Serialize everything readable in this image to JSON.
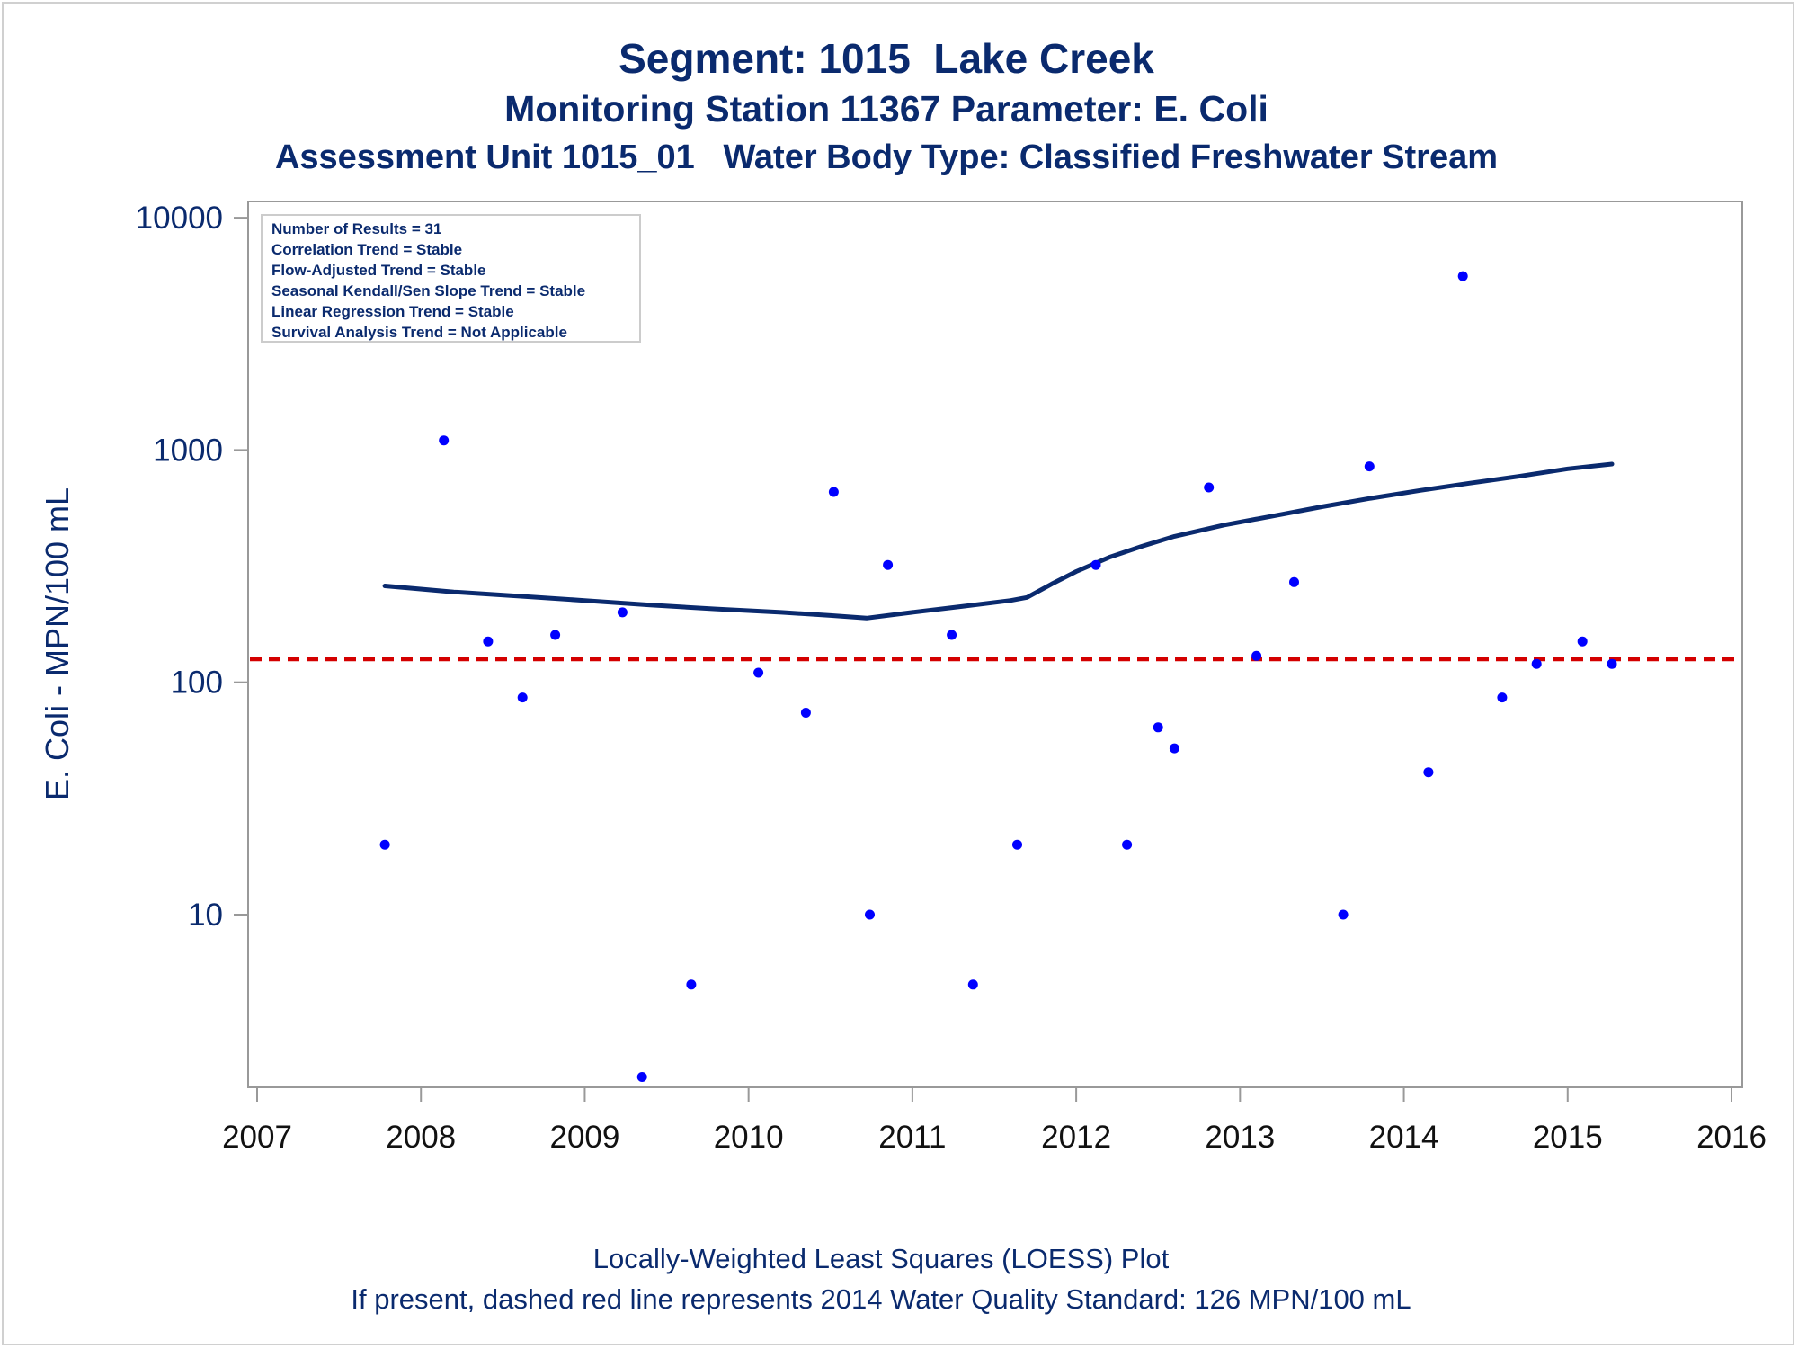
{
  "chart_data": {
    "type": "scatter",
    "title": "Segment: 1015  Lake Creek",
    "subtitle": "Monitoring Station 11367 Parameter: E. Coli",
    "subtitle2": "Assessment Unit 1015_01   Water Body Type: Classified Freshwater Stream",
    "xlabel": "",
    "ylabel": "E. Coli - MPN/100 mL",
    "yscale": "log",
    "xlim": [
      2007,
      2016
    ],
    "ylim": [
      2,
      10000
    ],
    "x_ticks": [
      "2007",
      "2008",
      "2009",
      "2010",
      "2011",
      "2012",
      "2013",
      "2014",
      "2015",
      "2016"
    ],
    "y_ticks": [
      "10",
      "100",
      "1000",
      "10000"
    ],
    "grid": false,
    "legend_box": {
      "placement": "top-left",
      "lines": [
        "Number of Results = 31",
        "Correlation Trend = Stable",
        "Flow-Adjusted Trend = Stable",
        "Seasonal Kendall/Sen Slope Trend = Stable",
        "Linear Regression Trend = Stable",
        "Survival Analysis Trend = Not Applicable"
      ]
    },
    "series": [
      {
        "kind": "points",
        "color": "#0000ff",
        "x": [
          2007.78,
          2008.14,
          2008.41,
          2008.62,
          2008.82,
          2009.23,
          2009.35,
          2009.65,
          2010.06,
          2010.35,
          2010.52,
          2010.74,
          2010.85,
          2011.24,
          2011.37,
          2011.64,
          2012.12,
          2012.31,
          2012.5,
          2012.6,
          2012.81,
          2013.1,
          2013.33,
          2013.63,
          2013.79,
          2014.15,
          2014.36,
          2014.6,
          2014.81,
          2015.09,
          2015.27
        ],
        "y": [
          20,
          1100,
          150,
          86,
          160,
          200,
          2,
          5,
          110,
          74,
          660,
          10,
          320,
          160,
          5,
          20,
          320,
          20,
          64,
          52,
          690,
          130,
          270,
          10,
          850,
          41,
          5600,
          86,
          120,
          150,
          120
        ]
      },
      {
        "kind": "line",
        "color": "#0a2a6e",
        "x": [
          2007.78,
          2008.2,
          2008.6,
          2009.0,
          2009.4,
          2009.8,
          2010.2,
          2010.5,
          2010.72,
          2011.0,
          2011.3,
          2011.6,
          2011.7,
          2011.85,
          2012.0,
          2012.2,
          2012.4,
          2012.6,
          2012.9,
          2013.2,
          2013.5,
          2013.8,
          2014.1,
          2014.4,
          2014.7,
          2015.0,
          2015.27
        ],
        "y": [
          260,
          245,
          235,
          225,
          215,
          207,
          200,
          194,
          189,
          200,
          212,
          225,
          232,
          265,
          300,
          345,
          385,
          425,
          475,
          520,
          570,
          620,
          670,
          720,
          770,
          830,
          870
        ]
      }
    ],
    "reference_line": {
      "y": 126,
      "style": "dashed",
      "color": "#d40000"
    },
    "footnotes": [
      "Locally-Weighted Least Squares (LOESS) Plot",
      "If present, dashed red line represents 2014 Water Quality Standard: 126 MPN/100 mL"
    ],
    "colors": {
      "text": "#0a2a6e",
      "axis": "#999999"
    }
  }
}
